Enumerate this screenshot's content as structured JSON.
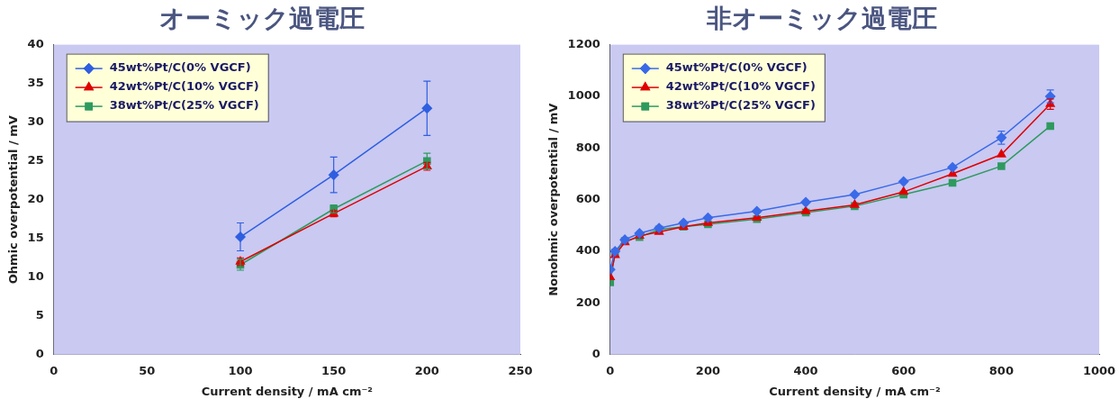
{
  "chart_data": [
    {
      "type": "line",
      "title": "オーミック過電圧",
      "x_label": "Current density / mA cm⁻²",
      "y_label": "Ohmic overpotential / mV",
      "xlim": [
        0,
        250
      ],
      "xticks": [
        0,
        50,
        100,
        150,
        200,
        250
      ],
      "ylim": [
        0,
        40
      ],
      "yticks": [
        0,
        5,
        10,
        15,
        20,
        25,
        30,
        35,
        40
      ],
      "grid": false,
      "legend": "upper left",
      "series": [
        {
          "name": "45wt%Pt/C(0% VGCF)",
          "color": "#2f5fe0",
          "marker": "diamond",
          "line_style": "solid",
          "x": [
            100,
            150,
            200
          ],
          "values": [
            15.2,
            23.2,
            31.8
          ],
          "errors": [
            1.8,
            2.3,
            3.5
          ]
        },
        {
          "name": "42wt%Pt/C(10% VGCF)",
          "color": "#e00000",
          "marker": "triangle",
          "line_style": "solid",
          "x": [
            100,
            150,
            200
          ],
          "values": [
            12.0,
            18.2,
            24.3
          ],
          "errors": [
            0.5,
            0.4,
            0.5
          ]
        },
        {
          "name": "38wt%Pt/C(25% VGCF)",
          "color": "#2e9a5e",
          "marker": "square",
          "line_style": "solid",
          "x": [
            100,
            150,
            200
          ],
          "values": [
            11.6,
            18.8,
            25.0
          ],
          "errors": [
            0.7,
            0.5,
            1.0
          ]
        }
      ]
    },
    {
      "type": "line",
      "title": "非オーミック過電圧",
      "x_label": "Current density / mA cm⁻²",
      "y_label": "Nonohmic overpotential / mV",
      "xlim": [
        0,
        1000
      ],
      "xticks": [
        0,
        200,
        400,
        600,
        800,
        1000
      ],
      "ylim": [
        0,
        1200
      ],
      "yticks": [
        0,
        200,
        400,
        600,
        800,
        1000,
        1200
      ],
      "grid": false,
      "legend": "upper left",
      "series": [
        {
          "name": "45wt%Pt/C(0% VGCF)",
          "color": "#3a6ae8",
          "marker": "diamond",
          "line_style": "solid",
          "x": [
            0,
            10,
            30,
            60,
            100,
            150,
            200,
            300,
            400,
            500,
            600,
            700,
            800,
            900
          ],
          "values": [
            330,
            400,
            445,
            470,
            490,
            510,
            530,
            555,
            590,
            620,
            670,
            725,
            840,
            1000
          ],
          "errors": [
            null,
            null,
            null,
            null,
            null,
            null,
            null,
            null,
            null,
            null,
            null,
            null,
            25,
            25
          ]
        },
        {
          "name": "42wt%Pt/C(10% VGCF)",
          "color": "#e00000",
          "marker": "triangle",
          "line_style": "solid",
          "x": [
            0,
            10,
            30,
            60,
            100,
            150,
            200,
            300,
            400,
            500,
            600,
            700,
            800,
            900
          ],
          "values": [
            300,
            385,
            435,
            460,
            475,
            495,
            510,
            530,
            555,
            580,
            630,
            700,
            775,
            970
          ],
          "errors": [
            null,
            null,
            null,
            null,
            null,
            null,
            null,
            null,
            null,
            null,
            null,
            null,
            null,
            20
          ]
        },
        {
          "name": "38wt%Pt/C(25% VGCF)",
          "color": "#2e9a5e",
          "marker": "square",
          "line_style": "solid",
          "x": [
            0,
            10,
            30,
            60,
            100,
            150,
            200,
            300,
            400,
            500,
            600,
            700,
            800,
            900
          ],
          "values": [
            280,
            395,
            440,
            455,
            485,
            495,
            505,
            525,
            550,
            575,
            620,
            665,
            730,
            885
          ],
          "errors": [
            null,
            null,
            null,
            null,
            null,
            null,
            null,
            null,
            null,
            null,
            null,
            null,
            null,
            null
          ]
        }
      ]
    }
  ]
}
